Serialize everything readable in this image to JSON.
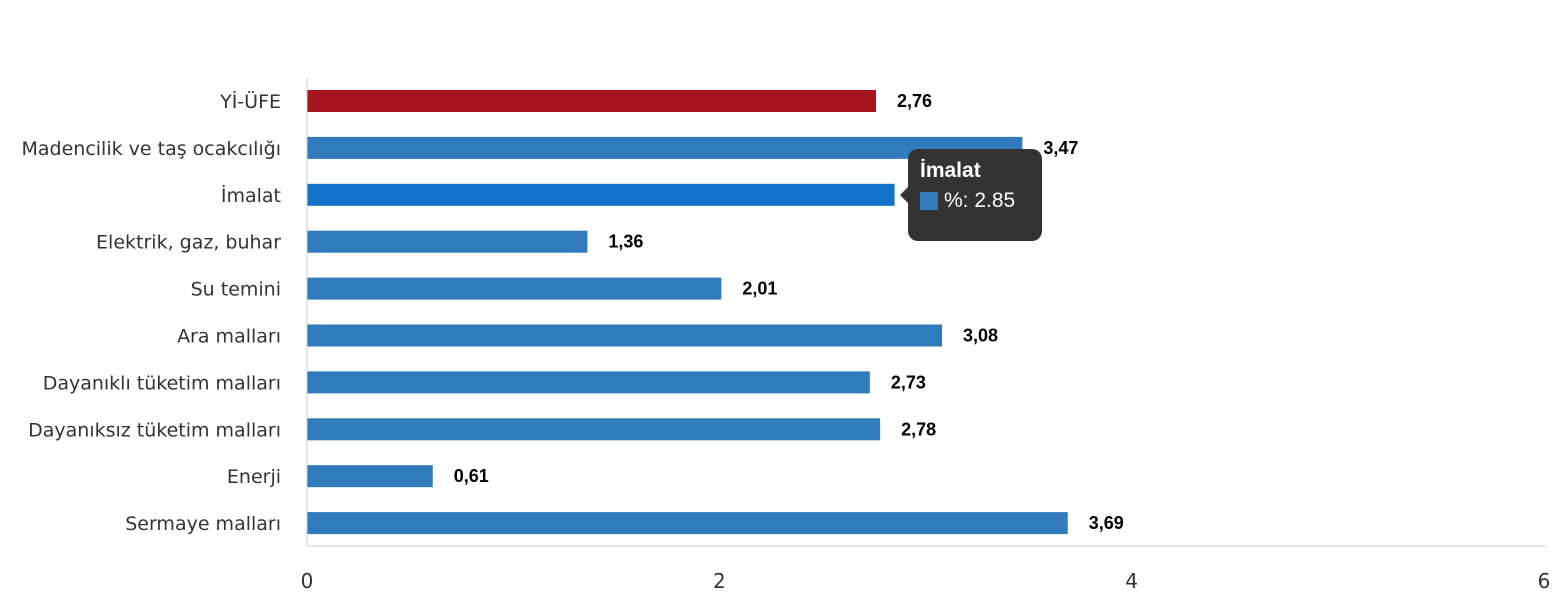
{
  "chart_data": {
    "type": "bar",
    "orientation": "horizontal",
    "categories": [
      "Yİ-ÜFE",
      "Madencilik ve taş ocakcılığı",
      "İmalat",
      "Elektrik, gaz, buhar",
      "Su temini",
      "Ara malları",
      "Dayanıklı tüketim malları",
      "Dayanıksız tüketim malları",
      "Enerji",
      "Sermaye malları"
    ],
    "values": [
      2.76,
      3.47,
      2.85,
      1.36,
      2.01,
      3.08,
      2.73,
      2.78,
      0.61,
      3.69
    ],
    "value_labels": [
      "2,76",
      "3,47",
      "2,85",
      "1,36",
      "2,01",
      "3,08",
      "2,73",
      "2,78",
      "0,61",
      "3,69"
    ],
    "xlim": [
      0,
      6
    ],
    "x_ticks": [
      "0",
      "2",
      "4",
      "6"
    ],
    "x_tick_values": [
      0,
      2,
      4,
      6
    ],
    "grid": false,
    "colors": {
      "default": "#2f7bbc",
      "highlight": "#a8141d",
      "hover": "#1273c9"
    },
    "highlight_index": 0,
    "hover_index": 2
  },
  "tooltip": {
    "title": "İmalat",
    "series_label": "%: 2.85",
    "swatch_color": "#2f7bbc"
  }
}
